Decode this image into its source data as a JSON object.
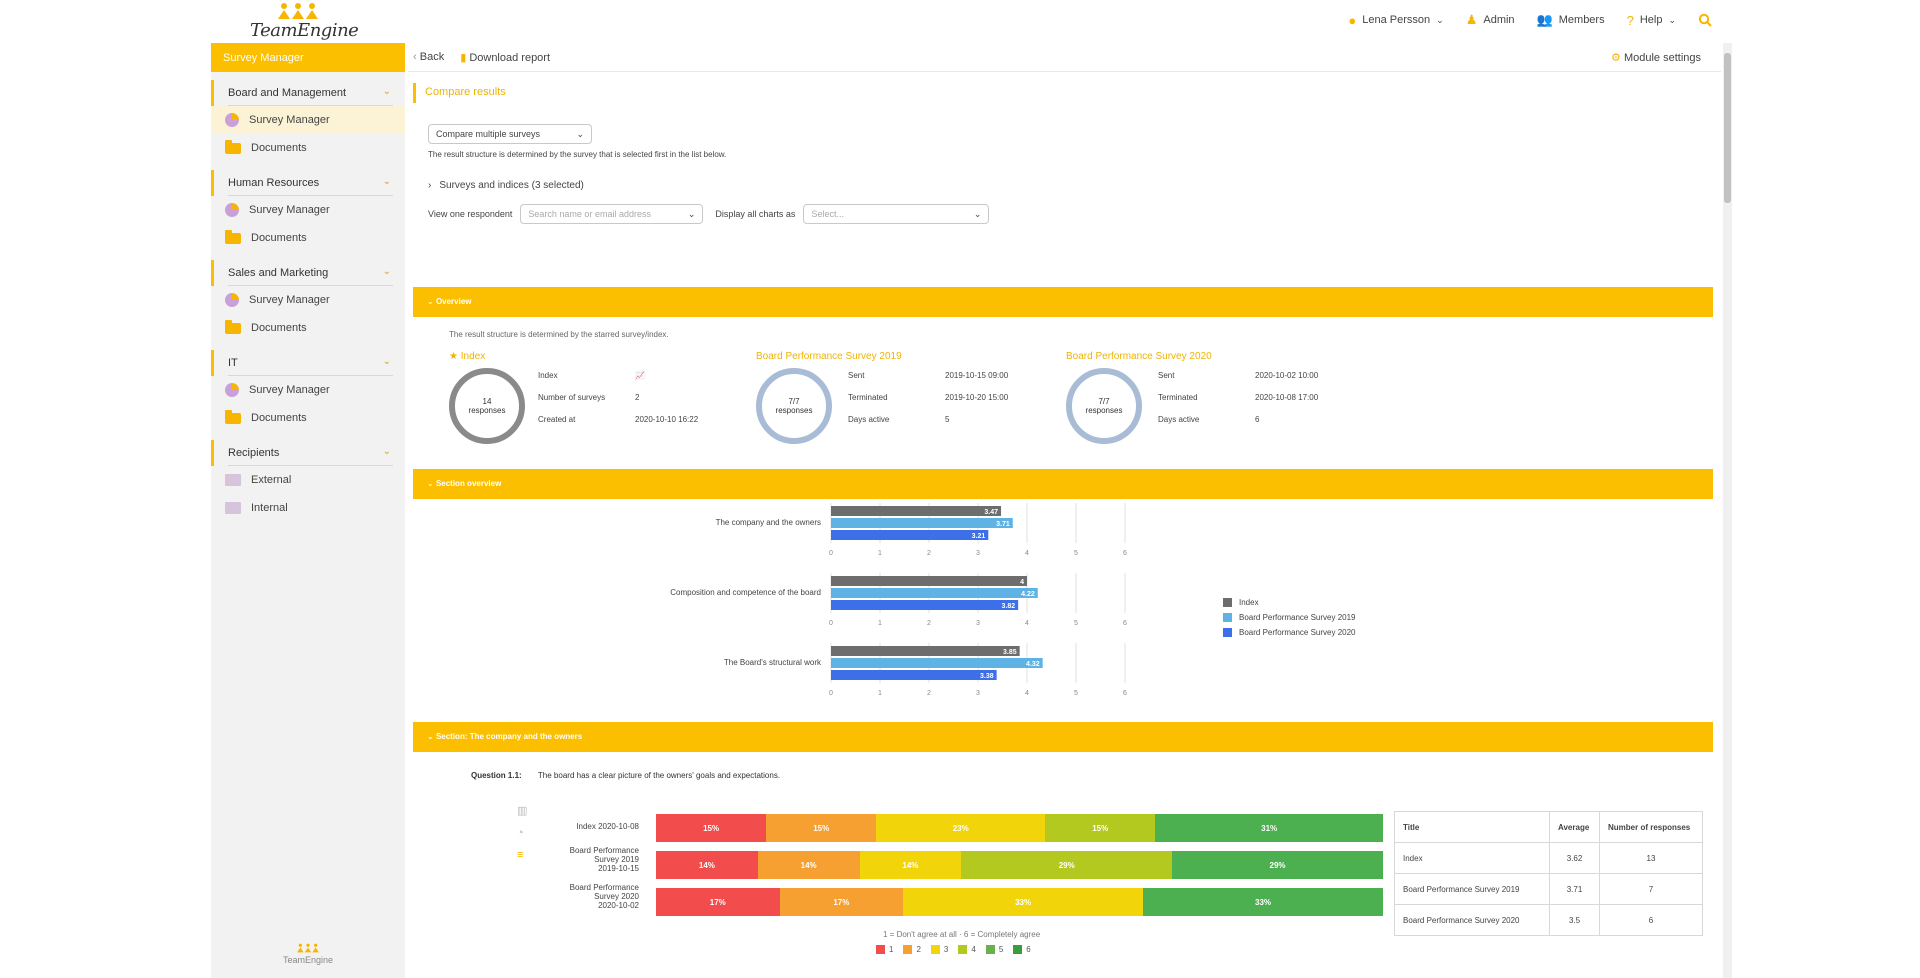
{
  "brand": {
    "name": "TeamEngine"
  },
  "topnav": [
    {
      "label": "Lena Persson",
      "icon": "user-icon"
    },
    {
      "label": "Admin",
      "icon": "admin-icon"
    },
    {
      "label": "Members",
      "icon": "members-icon"
    },
    {
      "label": "Help",
      "icon": "help-icon"
    }
  ],
  "sidebar": {
    "header": "Survey Manager",
    "groups": [
      {
        "label": "Board and Management",
        "items": [
          "Survey Manager",
          "Documents"
        ]
      },
      {
        "label": "Human Resources",
        "items": [
          "Survey Manager",
          "Documents"
        ]
      },
      {
        "label": "Sales and Marketing",
        "items": [
          "Survey Manager",
          "Documents"
        ]
      },
      {
        "label": "IT",
        "items": [
          "Survey Manager",
          "Documents"
        ]
      },
      {
        "label": "Recipients",
        "items": [
          "External",
          "Internal"
        ]
      }
    ],
    "footer": "TeamEngine"
  },
  "toolbar": {
    "back": "Back",
    "download": "Download report",
    "module_settings": "Module settings"
  },
  "compare": {
    "title": "Compare results",
    "mode": "Compare multiple surveys",
    "note": "The result structure is determined by the survey that is selected first in the list below.",
    "surveys_toggle": "Surveys and indices (3 selected)",
    "respondent_label": "View one respondent",
    "respondent_placeholder": "Search name or email address",
    "charts_label": "Display all charts as",
    "charts_placeholder": "Select..."
  },
  "overview": {
    "header": "Overview",
    "note": "The result structure is determined by the starred survey/index.",
    "cards": [
      {
        "title": "Index",
        "circle_main": "14",
        "circle_sub": "responses",
        "rows": [
          [
            "Index",
            ""
          ],
          [
            "Number of surveys",
            "2"
          ],
          [
            "Created at",
            "2020-10-10 16:22"
          ]
        ]
      },
      {
        "title": "Board Performance Survey 2019",
        "circle_main": "7/7",
        "circle_sub": "responses",
        "rows": [
          [
            "Sent",
            "2019-10-15 09:00"
          ],
          [
            "Terminated",
            "2019-10-20 15:00"
          ],
          [
            "Days active",
            "5"
          ]
        ]
      },
      {
        "title": "Board Performance Survey 2020",
        "circle_main": "7/7",
        "circle_sub": "responses",
        "rows": [
          [
            "Sent",
            "2020-10-02 10:00"
          ],
          [
            "Terminated",
            "2020-10-08 17:00"
          ],
          [
            "Days active",
            "6"
          ]
        ]
      }
    ]
  },
  "section_overview": {
    "header": "Section overview"
  },
  "chart_data": [
    {
      "type": "bar",
      "orientation": "horizontal",
      "categories": [
        "The company and the owners",
        "Composition and competence of the board",
        "The Board's structural work"
      ],
      "series": [
        {
          "name": "Index",
          "values": [
            3.47,
            4,
            3.85
          ]
        },
        {
          "name": "Board Performance Survey 2019",
          "values": [
            3.71,
            4.22,
            4.32
          ]
        },
        {
          "name": "Board Performance Survey 2020",
          "values": [
            3.21,
            3.82,
            3.38
          ]
        }
      ],
      "xlim": [
        0,
        6
      ],
      "xticks": [
        "0",
        "1",
        "2",
        "3",
        "4",
        "5",
        "6"
      ],
      "colors": [
        "#6d6d6d",
        "#5fb3e4",
        "#3d6fe8"
      ],
      "legend": "right",
      "grid": true
    },
    {
      "type": "bar",
      "orientation": "horizontal",
      "stacked": true,
      "categories": [
        "Index 2020-10-08",
        "Board Performance Survey 2019 2019-10-15",
        "Board Performance Survey 2020 2020-10-02"
      ],
      "series": [
        {
          "name": "1",
          "values": [
            15,
            14,
            17
          ]
        },
        {
          "name": "2",
          "values": [
            15,
            14,
            17
          ]
        },
        {
          "name": "3",
          "values": [
            23,
            14,
            33
          ]
        },
        {
          "name": "4",
          "values": [
            15,
            29,
            0
          ]
        },
        {
          "name": "6",
          "values": [
            31,
            29,
            33
          ]
        }
      ],
      "value_labels": [
        [
          "15%",
          "15%",
          "23%",
          "15%",
          "31%"
        ],
        [
          "14%",
          "14%",
          "14%",
          "29%",
          "29%"
        ],
        [
          "17%",
          "17%",
          "33%",
          "",
          "33%"
        ]
      ],
      "colors": [
        "#f24c4c",
        "#f5a030",
        "#f2d40a",
        "#b3c91f",
        "#4caf50"
      ]
    }
  ],
  "section_company": {
    "header": "Section: The company and the owners",
    "question_label": "Question 1.1:",
    "question_text": "The board has a clear picture of the owners' goals and expectations.",
    "stack_rows": [
      {
        "lines": [
          "Index 2020-10-08"
        ]
      },
      {
        "lines": [
          "Board Performance",
          "Survey 2019",
          "2019-10-15"
        ]
      },
      {
        "lines": [
          "Board Performance",
          "Survey 2020",
          "2020-10-02"
        ]
      }
    ],
    "scale_note": "1 = Don't agree at all  ·  6 = Completely agree",
    "scale_legend": [
      {
        "label": "1",
        "color": "#f24c4c"
      },
      {
        "label": "2",
        "color": "#f5a030"
      },
      {
        "label": "3",
        "color": "#f2d40a"
      },
      {
        "label": "4",
        "color": "#b3c91f"
      },
      {
        "label": "5",
        "color": "#6ab04c"
      },
      {
        "label": "6",
        "color": "#3a9d3a"
      }
    ],
    "table": {
      "headers": [
        "Title",
        "Average",
        "Number of responses"
      ],
      "rows": [
        [
          "Index",
          "3.62",
          "13"
        ],
        [
          "Board Performance Survey 2019",
          "3.71",
          "7"
        ],
        [
          "Board Performance Survey 2020",
          "3.5",
          "6"
        ]
      ]
    }
  }
}
